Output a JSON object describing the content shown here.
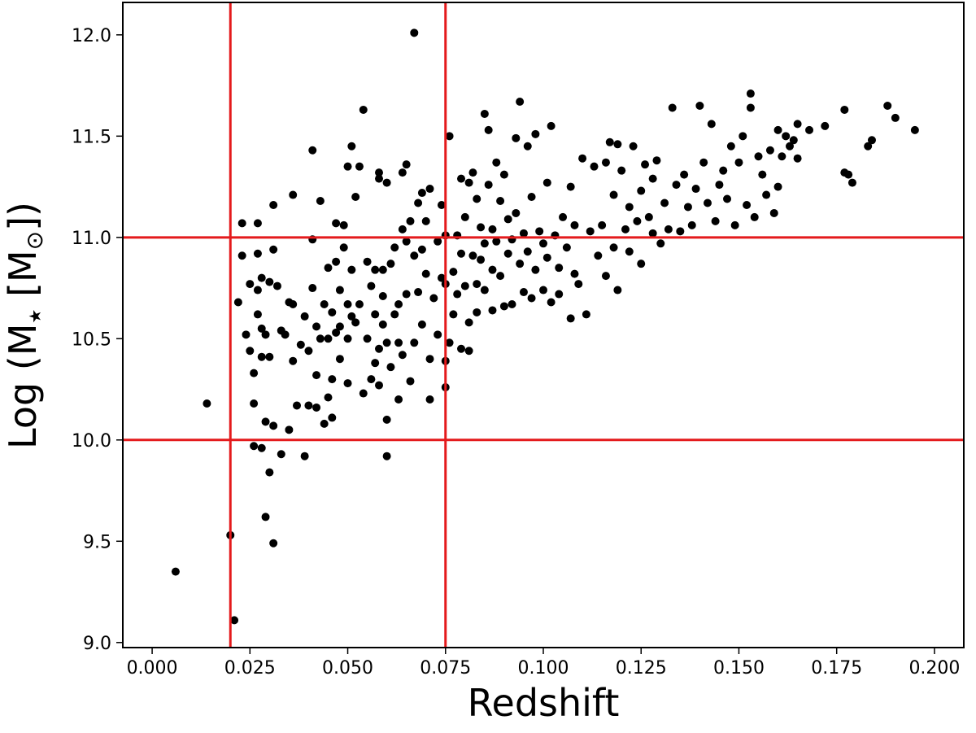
{
  "chart_data": {
    "type": "scatter",
    "xlabel": "Redshift",
    "ylabel_parts": {
      "prefix": "Log (M",
      "sub": "★",
      "mid": " [M",
      "sub2": "⊙",
      "suffix": "])"
    },
    "xlim": [
      -0.0075,
      0.2075
    ],
    "ylim": [
      8.975,
      12.16
    ],
    "xticks": [
      0.0,
      0.025,
      0.05,
      0.075,
      0.1,
      0.125,
      0.15,
      0.175,
      0.2
    ],
    "xtick_labels": [
      "0.000",
      "0.025",
      "0.050",
      "0.075",
      "0.100",
      "0.125",
      "0.150",
      "0.175",
      "0.200"
    ],
    "yticks": [
      9.0,
      9.5,
      10.0,
      10.5,
      11.0,
      11.5,
      12.0
    ],
    "ytick_labels": [
      "9.0",
      "9.5",
      "10.0",
      "10.5",
      "11.0",
      "11.5",
      "12.0"
    ],
    "grid": false,
    "reference_lines": {
      "vertical": [
        0.02,
        0.075
      ],
      "horizontal": [
        10.0,
        11.0
      ],
      "color": "#e41a1c"
    },
    "marker_color": "#000000",
    "points": [
      [
        0.006,
        9.35
      ],
      [
        0.014,
        10.18
      ],
      [
        0.02,
        9.53
      ],
      [
        0.021,
        9.11
      ],
      [
        0.022,
        10.68
      ],
      [
        0.023,
        10.91
      ],
      [
        0.023,
        11.07
      ],
      [
        0.024,
        10.52
      ],
      [
        0.025,
        10.77
      ],
      [
        0.025,
        10.44
      ],
      [
        0.026,
        9.97
      ],
      [
        0.026,
        10.33
      ],
      [
        0.026,
        10.18
      ],
      [
        0.027,
        10.92
      ],
      [
        0.027,
        10.74
      ],
      [
        0.027,
        10.62
      ],
      [
        0.027,
        11.07
      ],
      [
        0.028,
        10.41
      ],
      [
        0.028,
        9.96
      ],
      [
        0.028,
        10.55
      ],
      [
        0.028,
        10.8
      ],
      [
        0.029,
        10.09
      ],
      [
        0.029,
        10.52
      ],
      [
        0.029,
        9.62
      ],
      [
        0.03,
        9.84
      ],
      [
        0.03,
        10.41
      ],
      [
        0.03,
        10.78
      ],
      [
        0.031,
        10.07
      ],
      [
        0.031,
        11.16
      ],
      [
        0.031,
        9.49
      ],
      [
        0.031,
        10.94
      ],
      [
        0.032,
        10.76
      ],
      [
        0.033,
        9.93
      ],
      [
        0.033,
        10.54
      ],
      [
        0.034,
        10.52
      ],
      [
        0.035,
        10.05
      ],
      [
        0.035,
        10.68
      ],
      [
        0.036,
        10.67
      ],
      [
        0.036,
        10.39
      ],
      [
        0.036,
        11.21
      ],
      [
        0.037,
        10.17
      ],
      [
        0.038,
        10.47
      ],
      [
        0.039,
        9.92
      ],
      [
        0.039,
        10.61
      ],
      [
        0.04,
        10.44
      ],
      [
        0.04,
        10.17
      ],
      [
        0.041,
        10.75
      ],
      [
        0.041,
        11.43
      ],
      [
        0.041,
        10.99
      ],
      [
        0.042,
        10.16
      ],
      [
        0.042,
        10.32
      ],
      [
        0.042,
        10.56
      ],
      [
        0.043,
        10.5
      ],
      [
        0.043,
        11.18
      ],
      [
        0.044,
        10.08
      ],
      [
        0.044,
        10.67
      ],
      [
        0.045,
        10.5
      ],
      [
        0.045,
        10.21
      ],
      [
        0.045,
        10.85
      ],
      [
        0.046,
        10.63
      ],
      [
        0.046,
        10.3
      ],
      [
        0.046,
        10.11
      ],
      [
        0.047,
        11.07
      ],
      [
        0.047,
        10.53
      ],
      [
        0.047,
        10.88
      ],
      [
        0.048,
        10.74
      ],
      [
        0.048,
        10.56
      ],
      [
        0.048,
        10.4
      ],
      [
        0.049,
        11.06
      ],
      [
        0.049,
        10.95
      ],
      [
        0.05,
        10.67
      ],
      [
        0.05,
        10.5
      ],
      [
        0.05,
        10.28
      ],
      [
        0.05,
        11.35
      ],
      [
        0.051,
        10.84
      ],
      [
        0.051,
        10.61
      ],
      [
        0.051,
        11.45
      ],
      [
        0.052,
        10.58
      ],
      [
        0.052,
        11.2
      ],
      [
        0.053,
        11.35
      ],
      [
        0.053,
        10.67
      ],
      [
        0.054,
        10.23
      ],
      [
        0.054,
        11.63
      ],
      [
        0.055,
        10.5
      ],
      [
        0.055,
        10.88
      ],
      [
        0.056,
        10.3
      ],
      [
        0.056,
        10.76
      ],
      [
        0.057,
        10.38
      ],
      [
        0.057,
        10.62
      ],
      [
        0.057,
        10.84
      ],
      [
        0.058,
        11.29
      ],
      [
        0.058,
        10.45
      ],
      [
        0.058,
        11.32
      ],
      [
        0.058,
        10.27
      ],
      [
        0.059,
        10.71
      ],
      [
        0.059,
        10.84
      ],
      [
        0.059,
        10.57
      ],
      [
        0.06,
        10.1
      ],
      [
        0.06,
        10.48
      ],
      [
        0.06,
        9.92
      ],
      [
        0.06,
        11.27
      ],
      [
        0.061,
        10.87
      ],
      [
        0.061,
        10.36
      ],
      [
        0.062,
        10.62
      ],
      [
        0.062,
        10.95
      ],
      [
        0.063,
        10.67
      ],
      [
        0.063,
        10.48
      ],
      [
        0.063,
        10.2
      ],
      [
        0.064,
        11.32
      ],
      [
        0.064,
        11.04
      ],
      [
        0.064,
        10.42
      ],
      [
        0.065,
        11.36
      ],
      [
        0.065,
        10.98
      ],
      [
        0.065,
        10.72
      ],
      [
        0.066,
        10.29
      ],
      [
        0.066,
        11.08
      ],
      [
        0.067,
        10.48
      ],
      [
        0.067,
        10.91
      ],
      [
        0.067,
        12.01
      ],
      [
        0.068,
        10.73
      ],
      [
        0.068,
        11.17
      ],
      [
        0.069,
        10.94
      ],
      [
        0.069,
        10.57
      ],
      [
        0.069,
        11.22
      ],
      [
        0.07,
        10.82
      ],
      [
        0.07,
        11.08
      ],
      [
        0.071,
        10.4
      ],
      [
        0.071,
        10.2
      ],
      [
        0.071,
        11.24
      ],
      [
        0.072,
        10.7
      ],
      [
        0.073,
        10.98
      ],
      [
        0.073,
        10.52
      ],
      [
        0.074,
        10.8
      ],
      [
        0.074,
        11.16
      ],
      [
        0.075,
        10.39
      ],
      [
        0.075,
        11.01
      ],
      [
        0.075,
        10.77
      ],
      [
        0.075,
        10.26
      ],
      [
        0.076,
        11.5
      ],
      [
        0.076,
        10.48
      ],
      [
        0.077,
        10.83
      ],
      [
        0.077,
        10.62
      ],
      [
        0.078,
        11.01
      ],
      [
        0.078,
        10.72
      ],
      [
        0.079,
        11.29
      ],
      [
        0.079,
        10.45
      ],
      [
        0.079,
        10.92
      ],
      [
        0.08,
        10.76
      ],
      [
        0.08,
        11.1
      ],
      [
        0.081,
        11.27
      ],
      [
        0.081,
        10.58
      ],
      [
        0.081,
        10.44
      ],
      [
        0.082,
        10.91
      ],
      [
        0.082,
        11.32
      ],
      [
        0.083,
        10.77
      ],
      [
        0.083,
        11.19
      ],
      [
        0.083,
        10.63
      ],
      [
        0.084,
        11.05
      ],
      [
        0.084,
        10.89
      ],
      [
        0.085,
        11.61
      ],
      [
        0.085,
        10.97
      ],
      [
        0.085,
        10.74
      ],
      [
        0.086,
        11.53
      ],
      [
        0.086,
        11.26
      ],
      [
        0.087,
        10.84
      ],
      [
        0.087,
        11.04
      ],
      [
        0.087,
        10.64
      ],
      [
        0.088,
        11.37
      ],
      [
        0.088,
        10.98
      ],
      [
        0.089,
        11.18
      ],
      [
        0.089,
        10.81
      ],
      [
        0.09,
        11.31
      ],
      [
        0.09,
        10.66
      ],
      [
        0.091,
        10.92
      ],
      [
        0.091,
        11.09
      ],
      [
        0.092,
        10.99
      ],
      [
        0.092,
        10.67
      ],
      [
        0.093,
        11.49
      ],
      [
        0.093,
        11.12
      ],
      [
        0.094,
        10.87
      ],
      [
        0.094,
        11.67
      ],
      [
        0.095,
        10.73
      ],
      [
        0.095,
        11.02
      ],
      [
        0.096,
        11.45
      ],
      [
        0.096,
        10.93
      ],
      [
        0.097,
        10.7
      ],
      [
        0.097,
        11.2
      ],
      [
        0.098,
        11.51
      ],
      [
        0.098,
        10.84
      ],
      [
        0.099,
        11.03
      ],
      [
        0.1,
        10.74
      ],
      [
        0.1,
        10.97
      ],
      [
        0.101,
        11.27
      ],
      [
        0.101,
        10.9
      ],
      [
        0.102,
        10.68
      ],
      [
        0.102,
        11.55
      ],
      [
        0.103,
        11.01
      ],
      [
        0.104,
        10.85
      ],
      [
        0.104,
        10.72
      ],
      [
        0.105,
        11.1
      ],
      [
        0.106,
        10.95
      ],
      [
        0.107,
        10.6
      ],
      [
        0.107,
        11.25
      ],
      [
        0.108,
        11.06
      ],
      [
        0.108,
        10.82
      ],
      [
        0.109,
        10.77
      ],
      [
        0.11,
        11.39
      ],
      [
        0.111,
        10.62
      ],
      [
        0.112,
        11.03
      ],
      [
        0.113,
        11.35
      ],
      [
        0.114,
        10.91
      ],
      [
        0.115,
        11.06
      ],
      [
        0.116,
        11.37
      ],
      [
        0.116,
        10.81
      ],
      [
        0.117,
        11.47
      ],
      [
        0.118,
        10.95
      ],
      [
        0.118,
        11.21
      ],
      [
        0.119,
        11.46
      ],
      [
        0.119,
        10.74
      ],
      [
        0.12,
        11.33
      ],
      [
        0.121,
        11.04
      ],
      [
        0.122,
        11.15
      ],
      [
        0.122,
        10.93
      ],
      [
        0.123,
        11.45
      ],
      [
        0.124,
        11.08
      ],
      [
        0.125,
        11.23
      ],
      [
        0.125,
        10.87
      ],
      [
        0.126,
        11.36
      ],
      [
        0.127,
        11.1
      ],
      [
        0.128,
        11.29
      ],
      [
        0.128,
        11.02
      ],
      [
        0.129,
        11.38
      ],
      [
        0.13,
        10.97
      ],
      [
        0.131,
        11.17
      ],
      [
        0.132,
        11.04
      ],
      [
        0.133,
        11.64
      ],
      [
        0.134,
        11.26
      ],
      [
        0.135,
        11.03
      ],
      [
        0.136,
        11.31
      ],
      [
        0.137,
        11.15
      ],
      [
        0.138,
        11.06
      ],
      [
        0.139,
        11.24
      ],
      [
        0.14,
        11.65
      ],
      [
        0.141,
        11.37
      ],
      [
        0.142,
        11.17
      ],
      [
        0.143,
        11.56
      ],
      [
        0.144,
        11.08
      ],
      [
        0.145,
        11.26
      ],
      [
        0.146,
        11.33
      ],
      [
        0.147,
        11.19
      ],
      [
        0.148,
        11.45
      ],
      [
        0.149,
        11.06
      ],
      [
        0.15,
        11.37
      ],
      [
        0.151,
        11.5
      ],
      [
        0.152,
        11.16
      ],
      [
        0.153,
        11.71
      ],
      [
        0.153,
        11.64
      ],
      [
        0.154,
        11.1
      ],
      [
        0.155,
        11.4
      ],
      [
        0.156,
        11.31
      ],
      [
        0.157,
        11.21
      ],
      [
        0.158,
        11.43
      ],
      [
        0.159,
        11.12
      ],
      [
        0.16,
        11.53
      ],
      [
        0.16,
        11.25
      ],
      [
        0.161,
        11.4
      ],
      [
        0.162,
        11.5
      ],
      [
        0.163,
        11.45
      ],
      [
        0.164,
        11.48
      ],
      [
        0.165,
        11.56
      ],
      [
        0.165,
        11.39
      ],
      [
        0.168,
        11.53
      ],
      [
        0.172,
        11.55
      ],
      [
        0.177,
        11.63
      ],
      [
        0.177,
        11.32
      ],
      [
        0.178,
        11.31
      ],
      [
        0.179,
        11.27
      ],
      [
        0.183,
        11.45
      ],
      [
        0.184,
        11.48
      ],
      [
        0.188,
        11.65
      ],
      [
        0.19,
        11.59
      ],
      [
        0.195,
        11.53
      ]
    ]
  }
}
